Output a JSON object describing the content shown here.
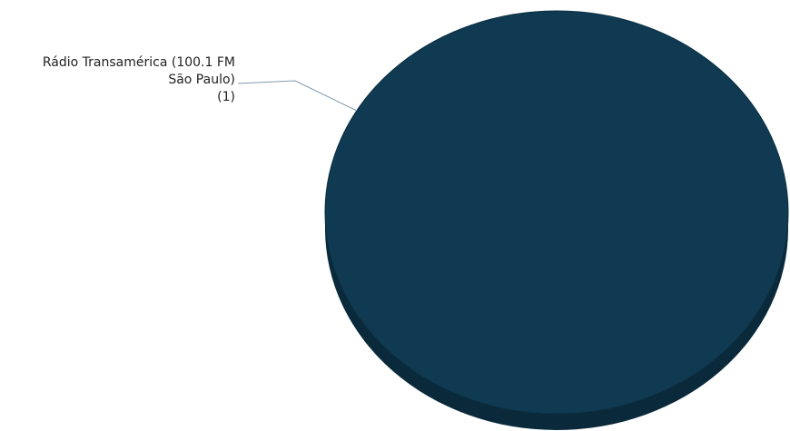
{
  "chart_data": {
    "type": "pie",
    "title": "",
    "categories": [
      "Rádio Transamérica (100.1 FM São Paulo)"
    ],
    "values": [
      1
    ],
    "labels": [
      {
        "lines": [
          "Rádio Transamérica (100.1 FM",
          "São Paulo)",
          "(1)"
        ]
      }
    ],
    "style": "3d",
    "colors": {
      "top": "#0f3a51",
      "side": "#0a2a3b",
      "edge": "#0c2f42",
      "leader": "#7f9aa8"
    },
    "legend": "none"
  }
}
